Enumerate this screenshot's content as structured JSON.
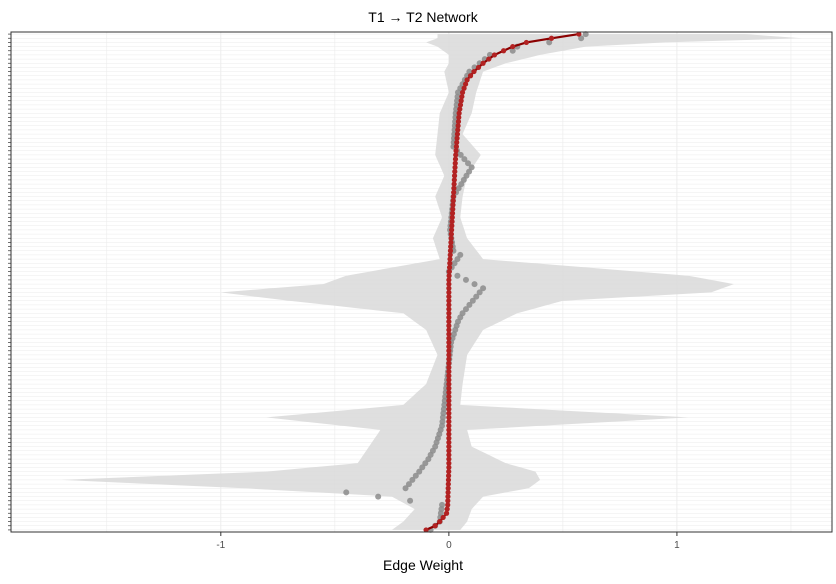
{
  "chart_data": {
    "type": "scatter",
    "title": "T1 → T2 Network",
    "xlabel": "Edge Weight",
    "ylabel": "",
    "xlim": [
      -1.92,
      1.68
    ],
    "x_ticks": [
      {
        "value": -1,
        "label": "-1"
      },
      {
        "value": 0,
        "label": "0"
      },
      {
        "value": 1,
        "label": "1"
      }
    ],
    "grid": true,
    "legend": "none",
    "n_edges": 120,
    "y_order": "sorted by sample estimate, largest at top",
    "colors": {
      "sample_line": "#8b0000",
      "sample_points": "#b22222",
      "bootstrap_mean_points": "#8c8c8c",
      "ci_band": "#d9d9d9",
      "panel_border": "#333333",
      "grid": "#ebebeb"
    },
    "series": [
      {
        "key": "sample",
        "anchors": [
          [
            1,
            0.57
          ],
          [
            2,
            0.45
          ],
          [
            3,
            0.34
          ],
          [
            4,
            0.28
          ],
          [
            5,
            0.24
          ],
          [
            6,
            0.2
          ],
          [
            8,
            0.15
          ],
          [
            10,
            0.11
          ],
          [
            12,
            0.08
          ],
          [
            15,
            0.06
          ],
          [
            20,
            0.045
          ],
          [
            30,
            0.03
          ],
          [
            45,
            0.015
          ],
          [
            55,
            0.005
          ],
          [
            60,
            0.0
          ],
          [
            105,
            0.0
          ],
          [
            110,
            -0.003
          ],
          [
            114,
            -0.005
          ],
          [
            116,
            -0.01
          ],
          [
            118,
            -0.04
          ],
          [
            119,
            -0.06
          ],
          [
            120,
            -0.1
          ]
        ]
      },
      {
        "key": "bootstrap_mean",
        "anchors": [
          [
            1,
            0.6
          ],
          [
            2,
            0.58
          ],
          [
            3,
            0.44
          ],
          [
            4,
            0.3
          ],
          [
            5,
            0.28
          ],
          [
            6,
            0.18
          ],
          [
            10,
            0.09
          ],
          [
            15,
            0.04
          ],
          [
            20,
            0.03
          ],
          [
            28,
            0.02
          ],
          [
            33,
            0.1
          ],
          [
            40,
            0.02
          ],
          [
            48,
            0.005
          ],
          [
            53,
            0.02
          ],
          [
            54,
            0.05
          ],
          [
            58,
            0.0
          ],
          [
            62,
            0.15
          ],
          [
            64,
            0.12
          ],
          [
            66,
            0.09
          ],
          [
            68,
            0.06
          ],
          [
            70,
            0.04
          ],
          [
            75,
            0.01
          ],
          [
            85,
            -0.01
          ],
          [
            95,
            -0.03
          ],
          [
            100,
            -0.06
          ],
          [
            103,
            -0.09
          ],
          [
            106,
            -0.13
          ],
          [
            108,
            -0.16
          ],
          [
            110,
            -0.19
          ],
          [
            111,
            -0.45
          ],
          [
            114,
            -0.03
          ],
          [
            118,
            -0.04
          ],
          [
            120,
            -0.08
          ]
        ]
      },
      {
        "key": "ci",
        "anchors": [
          [
            1,
            [
              -0.05,
              1.3
            ]
          ],
          [
            2,
            [
              -0.05,
              1.55
            ]
          ],
          [
            3,
            [
              -0.1,
              0.95
            ]
          ],
          [
            4,
            [
              -0.05,
              0.6
            ]
          ],
          [
            6,
            [
              0.0,
              0.4
            ]
          ],
          [
            8,
            [
              0.0,
              0.25
            ]
          ],
          [
            10,
            [
              -0.02,
              0.15
            ]
          ],
          [
            15,
            [
              0.0,
              0.12
            ]
          ],
          [
            20,
            [
              -0.04,
              0.1
            ]
          ],
          [
            25,
            [
              -0.05,
              0.06
            ]
          ],
          [
            30,
            [
              -0.06,
              0.14
            ]
          ],
          [
            35,
            [
              -0.02,
              0.08
            ]
          ],
          [
            40,
            [
              -0.06,
              0.06
            ]
          ],
          [
            45,
            [
              -0.03,
              0.05
            ]
          ],
          [
            50,
            [
              -0.07,
              0.08
            ]
          ],
          [
            55,
            [
              -0.04,
              0.15
            ]
          ],
          [
            59,
            [
              -0.45,
              1.05
            ]
          ],
          [
            61,
            [
              -0.55,
              1.25
            ]
          ],
          [
            63,
            [
              -1.0,
              1.15
            ]
          ],
          [
            65,
            [
              -0.7,
              0.5
            ]
          ],
          [
            68,
            [
              -0.2,
              0.3
            ]
          ],
          [
            72,
            [
              -0.1,
              0.15
            ]
          ],
          [
            78,
            [
              -0.05,
              0.08
            ]
          ],
          [
            85,
            [
              -0.1,
              0.06
            ]
          ],
          [
            90,
            [
              -0.2,
              0.05
            ]
          ],
          [
            93,
            [
              -0.8,
              1.05
            ]
          ],
          [
            96,
            [
              -0.3,
              0.08
            ]
          ],
          [
            100,
            [
              -0.35,
              0.1
            ]
          ],
          [
            104,
            [
              -0.4,
              0.25
            ]
          ],
          [
            106,
            [
              -0.8,
              0.38
            ]
          ],
          [
            108,
            [
              -1.7,
              0.4
            ]
          ],
          [
            110,
            [
              -0.9,
              0.35
            ]
          ],
          [
            112,
            [
              -0.25,
              0.15
            ]
          ],
          [
            115,
            [
              -0.15,
              0.1
            ]
          ],
          [
            118,
            [
              -0.2,
              0.08
            ]
          ],
          [
            120,
            [
              -0.25,
              0.05
            ]
          ]
        ]
      }
    ]
  }
}
